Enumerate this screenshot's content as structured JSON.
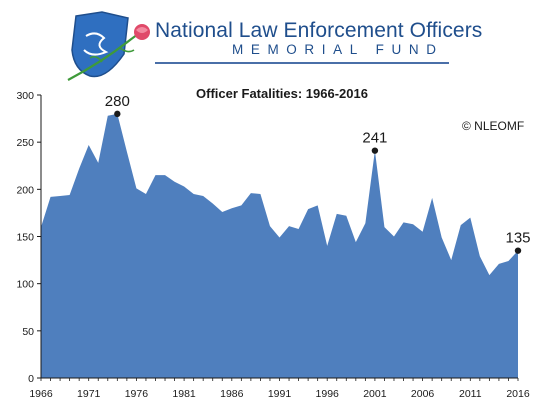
{
  "header": {
    "org_line1": "National Law Enforcement Officers",
    "org_line2": "MEMORIAL FUND"
  },
  "colors": {
    "area": "#4f7fbe",
    "brand": "#1f4e8c",
    "badge": "#2f6fc0",
    "rose": "#e04a6a",
    "stem": "#3f9a3a"
  },
  "copyright": "© NLEOMF",
  "chart_data": {
    "type": "area",
    "title": "Officer Fatalities: 1966-2016",
    "xlabel": "",
    "ylabel": "",
    "xlim": [
      1966,
      2016
    ],
    "ylim": [
      0,
      300
    ],
    "grid": false,
    "yticks": [
      0,
      50,
      100,
      150,
      200,
      250,
      300
    ],
    "xticks": [
      1966,
      1971,
      1976,
      1981,
      1986,
      1991,
      1996,
      2001,
      2006,
      2011,
      2016
    ],
    "x": [
      1966,
      1967,
      1968,
      1969,
      1970,
      1971,
      1972,
      1973,
      1974,
      1975,
      1976,
      1977,
      1978,
      1979,
      1980,
      1981,
      1982,
      1983,
      1984,
      1985,
      1986,
      1987,
      1988,
      1989,
      1990,
      1991,
      1992,
      1993,
      1994,
      1995,
      1996,
      1997,
      1998,
      1999,
      2000,
      2001,
      2002,
      2003,
      2004,
      2005,
      2006,
      2007,
      2008,
      2009,
      2010,
      2011,
      2012,
      2013,
      2014,
      2015,
      2016
    ],
    "values": [
      160,
      192,
      193,
      194,
      222,
      247,
      228,
      278,
      280,
      240,
      201,
      195,
      215,
      215,
      208,
      203,
      195,
      193,
      185,
      176,
      180,
      183,
      196,
      195,
      161,
      149,
      161,
      158,
      179,
      183,
      140,
      174,
      172,
      144,
      164,
      241,
      160,
      150,
      165,
      163,
      155,
      191,
      149,
      125,
      162,
      170,
      129,
      109,
      121,
      124,
      135
    ],
    "annotations": [
      {
        "x": 1974,
        "y": 280,
        "label": "280"
      },
      {
        "x": 2001,
        "y": 241,
        "label": "241"
      },
      {
        "x": 2016,
        "y": 135,
        "label": "135"
      }
    ]
  }
}
